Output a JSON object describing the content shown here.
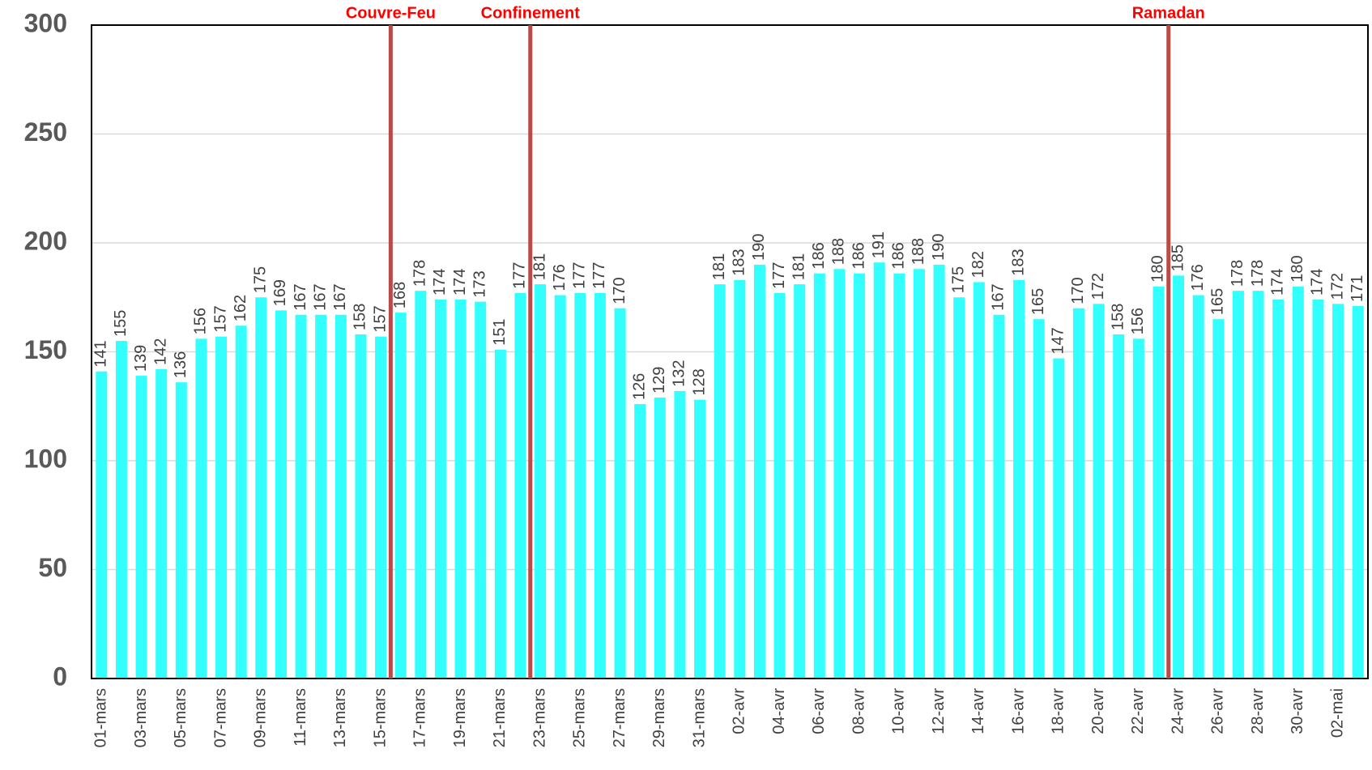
{
  "chart_data": {
    "type": "bar",
    "categories": [
      "01-mars",
      null,
      "03-mars",
      null,
      "05-mars",
      null,
      "07-mars",
      null,
      "09-mars",
      null,
      "11-mars",
      null,
      "13-mars",
      null,
      "15-mars",
      null,
      "17-mars",
      null,
      "19-mars",
      null,
      "21-mars",
      null,
      "23-mars",
      null,
      "25-mars",
      null,
      "27-mars",
      null,
      "29-mars",
      null,
      "31-mars",
      null,
      "02-avr",
      null,
      "04-avr",
      null,
      "06-avr",
      null,
      "08-avr",
      null,
      "10-avr",
      null,
      "12-avr",
      null,
      "14-avr",
      null,
      "16-avr",
      null,
      "18-avr",
      null,
      "20-avr",
      null,
      "22-avr",
      null,
      "24-avr",
      null,
      "26-avr",
      null,
      "28-avr",
      null,
      "30-avr",
      null,
      "02-mai",
      null
    ],
    "values": [
      141,
      155,
      139,
      142,
      136,
      156,
      157,
      162,
      175,
      169,
      167,
      167,
      167,
      158,
      157,
      168,
      178,
      174,
      174,
      173,
      151,
      177,
      181,
      176,
      177,
      177,
      170,
      126,
      129,
      132,
      128,
      181,
      183,
      190,
      177,
      181,
      186,
      188,
      186,
      191,
      186,
      188,
      190,
      175,
      182,
      167,
      183,
      165,
      147,
      170,
      172,
      158,
      156,
      180,
      185,
      176,
      165,
      178,
      178,
      174,
      180,
      174,
      172,
      171
    ],
    "color": "#33ffff",
    "ylim": [
      0,
      300
    ],
    "yticks": [
      0,
      50,
      100,
      150,
      200,
      250,
      300
    ],
    "grid": true,
    "annotations": [
      {
        "text": "Couvre-Feu",
        "after": 14
      },
      {
        "text": "Confinement",
        "after": 21
      },
      {
        "text": "Ramadan",
        "after": 53
      }
    ],
    "annotation_color": "#b94a48",
    "annotation_text_color": "#ff0000"
  }
}
